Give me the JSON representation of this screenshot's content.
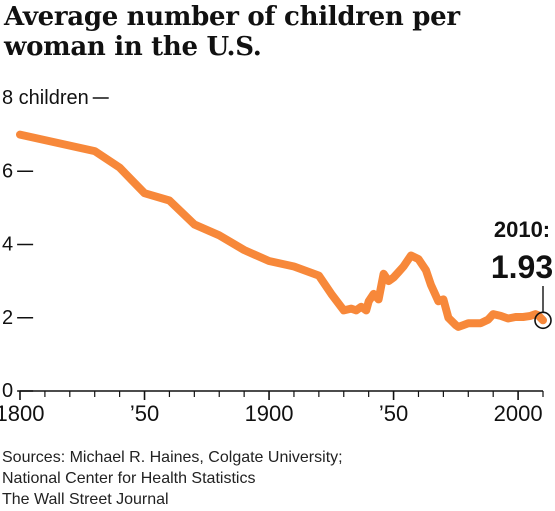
{
  "title_lines": [
    "Average number of children per",
    "woman in the U.S."
  ],
  "sources_lines": [
    "Sources: Michael R. Haines, Colgate University;",
    "National Center for Health Statistics",
    "The Wall Street Journal"
  ],
  "colors": {
    "line": "#f7883a",
    "text": "#111111"
  },
  "chart_data": {
    "type": "line",
    "title": "Average number of children per woman in the U.S.",
    "xlim": [
      1800,
      2010
    ],
    "ylim": [
      0,
      8
    ],
    "grid": false,
    "y_ticks": [
      {
        "value": 0,
        "label": "0"
      },
      {
        "value": 2,
        "label": "2"
      },
      {
        "value": 4,
        "label": "4"
      },
      {
        "value": 6,
        "label": "6"
      },
      {
        "value": 8,
        "label": "8 children"
      }
    ],
    "x_labels": [
      {
        "value": 1800,
        "label": "1800"
      },
      {
        "value": 1850,
        "label": "’50"
      },
      {
        "value": 1900,
        "label": "1900"
      },
      {
        "value": 1950,
        "label": "’50"
      },
      {
        "value": 2000,
        "label": "2000"
      }
    ],
    "series": [
      {
        "x": [
          1800,
          1810,
          1820,
          1830,
          1840,
          1850,
          1860,
          1870,
          1880,
          1890,
          1900,
          1910,
          1920,
          1925,
          1930,
          1933,
          1935,
          1937,
          1939,
          1940,
          1942,
          1944,
          1946,
          1947,
          1948,
          1950,
          1952,
          1954,
          1957,
          1960,
          1963,
          1965,
          1968,
          1970,
          1972,
          1975,
          1976,
          1978,
          1980,
          1982,
          1985,
          1988,
          1990,
          1993,
          1996,
          1999,
          2002,
          2005,
          2007,
          2008,
          2010
        ],
        "y": [
          7.0,
          6.85,
          6.7,
          6.55,
          6.1,
          5.4,
          5.2,
          4.55,
          4.25,
          3.85,
          3.55,
          3.4,
          3.15,
          2.65,
          2.2,
          2.25,
          2.2,
          2.3,
          2.2,
          2.45,
          2.65,
          2.5,
          3.2,
          3.1,
          3.0,
          3.1,
          3.25,
          3.4,
          3.7,
          3.6,
          3.3,
          2.9,
          2.45,
          2.5,
          2.0,
          1.8,
          1.75,
          1.8,
          1.85,
          1.85,
          1.85,
          1.95,
          2.1,
          2.05,
          1.98,
          2.02,
          2.02,
          2.05,
          2.1,
          2.07,
          1.93
        ]
      }
    ],
    "annotation": {
      "x": 2010,
      "y": 1.93,
      "label_year": "2010:",
      "label_value": "1.93"
    }
  }
}
